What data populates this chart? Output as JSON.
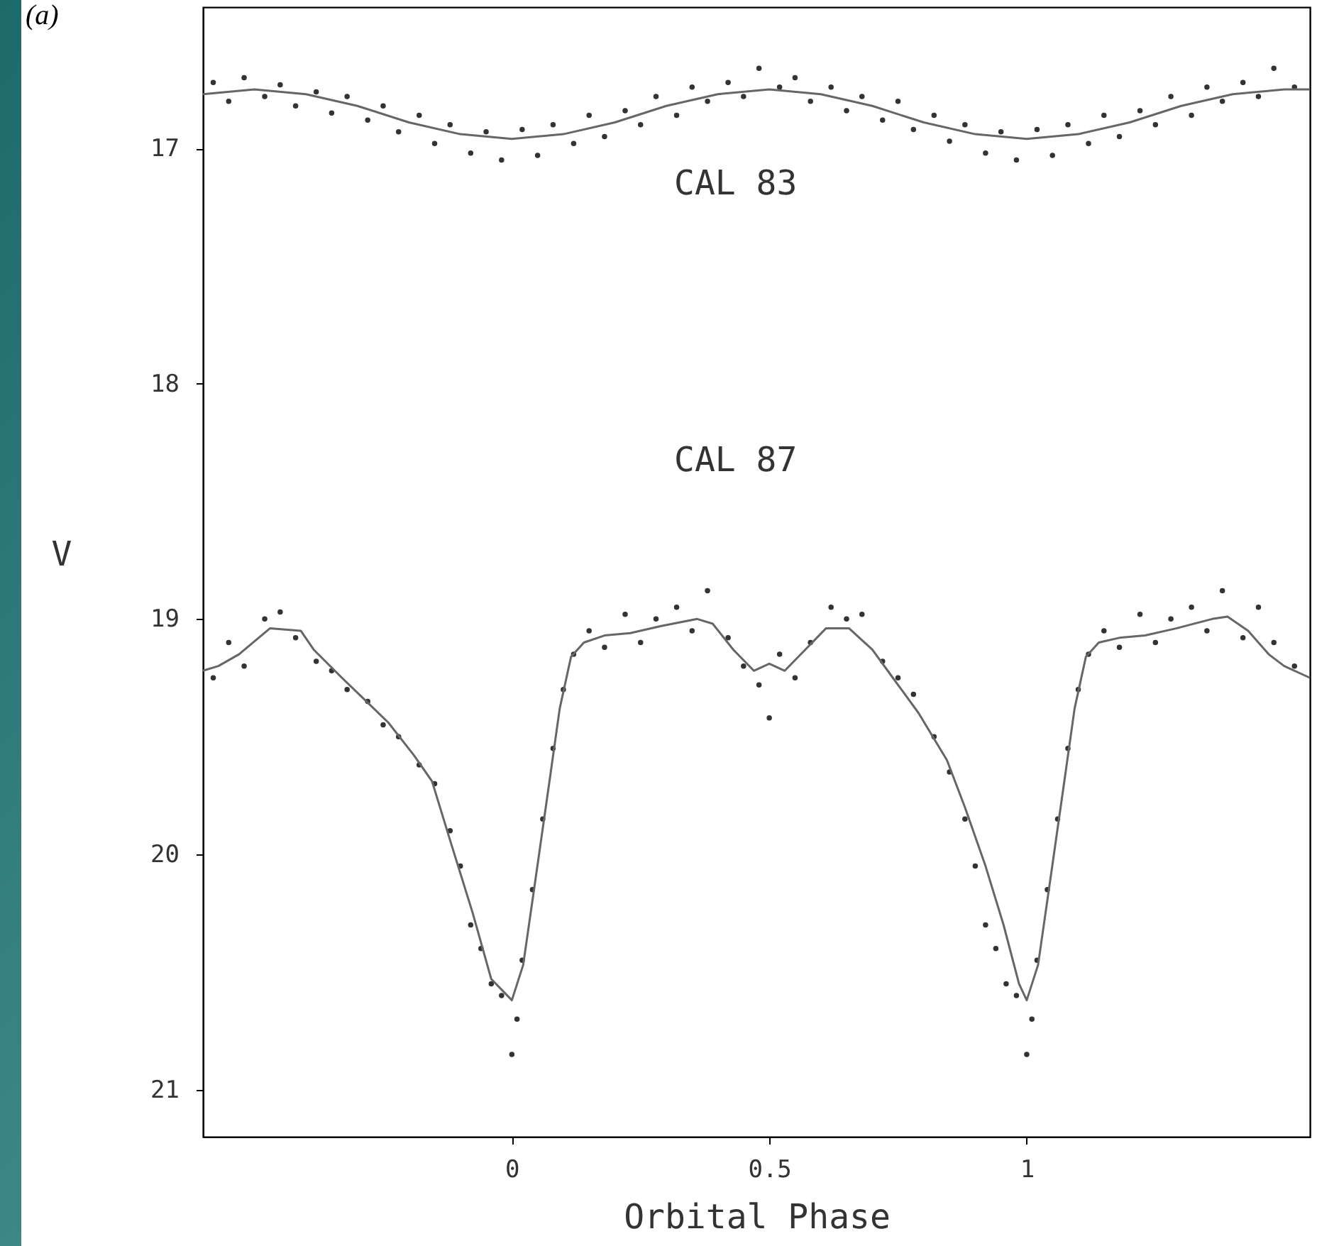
{
  "chart_data": {
    "type": "scatter",
    "xlabel": "Orbital Phase",
    "ylabel": "V",
    "xlim": [
      -0.6,
      1.55
    ],
    "ylim": [
      21.2,
      16.4
    ],
    "xticks": [
      0,
      0.5,
      1
    ],
    "yticks": [
      17,
      18,
      19,
      20,
      21
    ],
    "grid": false,
    "annotations": [
      "(a)",
      "CAL 83",
      "CAL 87"
    ],
    "series": [
      {
        "color": "#333333",
        "x": [
          -0.58,
          -0.55,
          -0.52,
          -0.48,
          -0.45,
          -0.42,
          -0.38,
          -0.35,
          -0.32,
          -0.28,
          -0.25,
          -0.22,
          -0.18,
          -0.15,
          -0.12,
          -0.08,
          -0.05,
          -0.02,
          0.02,
          0.05,
          0.08,
          0.12,
          0.15,
          0.18,
          0.22,
          0.25,
          0.28,
          0.32,
          0.35,
          0.38,
          0.42,
          0.45,
          0.48,
          0.52,
          0.55,
          0.58,
          0.62,
          0.65,
          0.68,
          0.72,
          0.75,
          0.78,
          0.82,
          0.85,
          0.88,
          0.92,
          0.95,
          0.98,
          1.02,
          1.05,
          1.08,
          1.12,
          1.15,
          1.18,
          1.22,
          1.25,
          1.28,
          1.32,
          1.35,
          1.38,
          1.42,
          1.45,
          1.48,
          1.52
        ],
        "values": [
          16.72,
          16.8,
          16.7,
          16.78,
          16.73,
          16.82,
          16.76,
          16.85,
          16.78,
          16.88,
          16.82,
          16.93,
          16.86,
          16.98,
          16.9,
          17.02,
          16.93,
          17.05,
          16.92,
          17.03,
          16.9,
          16.98,
          16.86,
          16.95,
          16.84,
          16.9,
          16.78,
          16.86,
          16.74,
          16.8,
          16.72,
          16.78,
          16.66,
          16.74,
          16.7,
          16.8,
          16.74,
          16.84,
          16.78,
          16.88,
          16.8,
          16.92,
          16.86,
          16.97,
          16.9,
          17.02,
          16.93,
          17.05,
          16.92,
          17.03,
          16.9,
          16.98,
          16.86,
          16.95,
          16.84,
          16.9,
          16.78,
          16.86,
          16.74,
          16.8,
          16.72,
          16.78,
          16.66,
          16.74
        ]
      },
      {
        "type": "line",
        "line_style": "solid",
        "color": "#666666",
        "x": [
          -0.6,
          -0.5,
          -0.4,
          -0.3,
          -0.2,
          -0.1,
          0,
          0.1,
          0.2,
          0.3,
          0.4,
          0.5,
          0.6,
          0.7,
          0.8,
          0.9,
          1,
          1.1,
          1.2,
          1.3,
          1.4,
          1.5,
          1.55
        ],
        "values": [
          16.77,
          16.75,
          16.77,
          16.82,
          16.89,
          16.94,
          16.96,
          16.94,
          16.89,
          16.82,
          16.77,
          16.75,
          16.77,
          16.82,
          16.89,
          16.94,
          16.96,
          16.94,
          16.89,
          16.82,
          16.77,
          16.75,
          16.75
        ]
      },
      {
        "color": "#333333",
        "x": [
          -0.58,
          -0.55,
          -0.52,
          -0.48,
          -0.45,
          -0.42,
          -0.38,
          -0.35,
          -0.32,
          -0.28,
          -0.25,
          -0.22,
          -0.18,
          -0.15,
          -0.12,
          -0.1,
          -0.08,
          -0.06,
          -0.04,
          -0.02,
          0,
          0.01,
          0.02,
          0.04,
          0.06,
          0.08,
          0.1,
          0.12,
          0.15,
          0.18,
          0.22,
          0.25,
          0.28,
          0.32,
          0.35,
          0.38,
          0.42,
          0.45,
          0.48,
          0.5,
          0.52,
          0.55,
          0.58,
          0.62,
          0.65,
          0.68,
          0.72,
          0.75,
          0.78,
          0.82,
          0.85,
          0.88,
          0.9,
          0.92,
          0.94,
          0.96,
          0.98,
          1.0,
          1.01,
          1.02,
          1.04,
          1.06,
          1.08,
          1.1,
          1.12,
          1.15,
          1.18,
          1.22,
          1.25,
          1.28,
          1.32,
          1.35,
          1.38,
          1.42,
          1.45,
          1.48,
          1.52
        ],
        "values": [
          19.25,
          19.1,
          19.2,
          19.0,
          18.97,
          19.08,
          19.18,
          19.22,
          19.3,
          19.35,
          19.45,
          19.5,
          19.62,
          19.7,
          19.9,
          20.05,
          20.3,
          20.4,
          20.55,
          20.6,
          20.85,
          20.7,
          20.45,
          20.15,
          19.85,
          19.55,
          19.3,
          19.15,
          19.05,
          19.12,
          18.98,
          19.1,
          19.0,
          18.95,
          19.05,
          18.88,
          19.08,
          19.2,
          19.28,
          19.42,
          19.15,
          19.25,
          19.1,
          18.95,
          19.0,
          18.98,
          19.18,
          19.25,
          19.32,
          19.5,
          19.65,
          19.85,
          20.05,
          20.3,
          20.4,
          20.55,
          20.6,
          20.85,
          20.7,
          20.45,
          20.15,
          19.85,
          19.55,
          19.3,
          19.15,
          19.05,
          19.12,
          18.98,
          19.1,
          19.0,
          18.95,
          19.05,
          18.88,
          19.08,
          18.95,
          19.1,
          19.2
        ]
      },
      {
        "type": "line",
        "line_style": "solid",
        "color": "#666666",
        "x": [
          -0.6,
          -0.57,
          -0.53,
          -0.47,
          -0.41,
          -0.385,
          -0.33,
          -0.24,
          -0.19,
          -0.155,
          -0.12,
          -0.076,
          -0.04,
          0,
          0.022,
          0.045,
          0.073,
          0.093,
          0.115,
          0.14,
          0.18,
          0.23,
          0.29,
          0.36,
          0.39,
          0.43,
          0.47,
          0.5,
          0.53,
          0.57,
          0.61,
          0.655,
          0.7,
          0.74,
          0.79,
          0.845,
          0.88,
          0.92,
          0.955,
          0.985,
          1.0,
          1.022,
          1.045,
          1.073,
          1.093,
          1.115,
          1.14,
          1.18,
          1.23,
          1.29,
          1.36,
          1.39,
          1.43,
          1.47,
          1.5,
          1.55
        ],
        "values": [
          19.22,
          19.2,
          19.15,
          19.04,
          19.05,
          19.13,
          19.25,
          19.44,
          19.58,
          19.69,
          19.94,
          20.25,
          20.53,
          20.62,
          20.47,
          20.12,
          19.69,
          19.38,
          19.16,
          19.1,
          19.07,
          19.06,
          19.03,
          19.0,
          19.02,
          19.13,
          19.22,
          19.19,
          19.22,
          19.13,
          19.04,
          19.04,
          19.13,
          19.25,
          19.4,
          19.6,
          19.8,
          20.05,
          20.3,
          20.55,
          20.62,
          20.47,
          20.12,
          19.69,
          19.38,
          19.16,
          19.1,
          19.08,
          19.07,
          19.04,
          19.0,
          18.99,
          19.05,
          19.15,
          19.2,
          19.25
        ]
      }
    ]
  }
}
